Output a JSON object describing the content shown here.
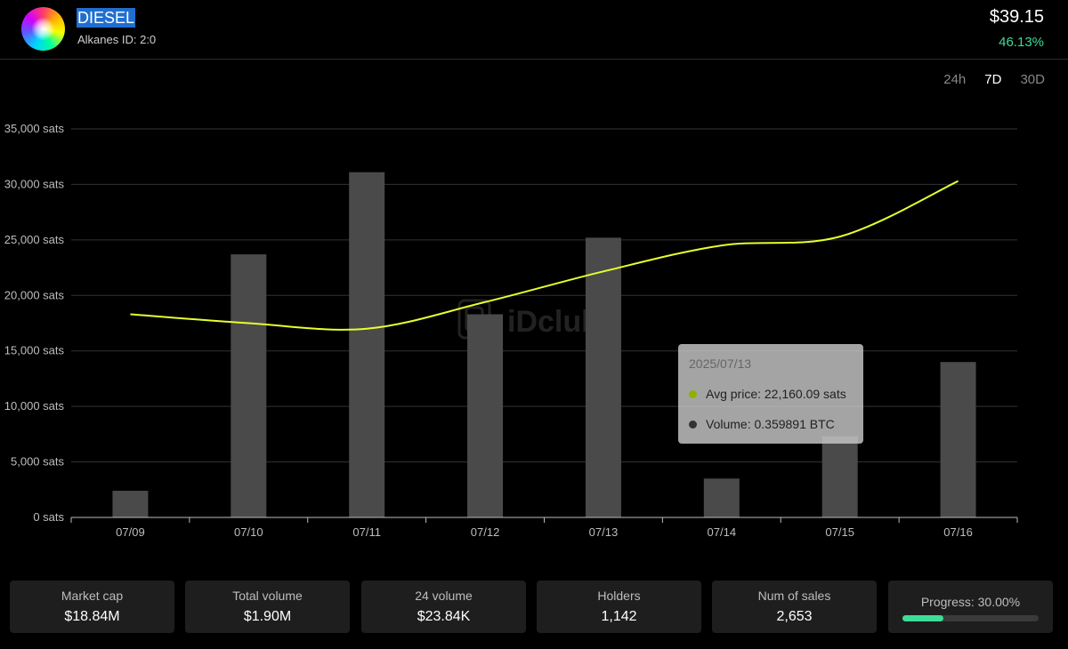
{
  "token": {
    "name": "DIESEL",
    "id_text": "Alkanes ID: 2:0",
    "price": "$39.15",
    "change": "46.13%"
  },
  "timeframes": [
    {
      "label": "24h",
      "active": false
    },
    {
      "label": "7D",
      "active": true
    },
    {
      "label": "30D",
      "active": false
    }
  ],
  "colors": {
    "accent_green": "#3ddc97",
    "line": "#e6ff2e",
    "bar": "#4a4a4a",
    "tooltip_volume_dot": "#333333",
    "tooltip_price_dot": "#8fb000"
  },
  "watermark": "iDclub",
  "chart_data": {
    "type": "bar",
    "categories": [
      "07/09",
      "07/10",
      "07/11",
      "07/12",
      "07/13",
      "07/14",
      "07/15",
      "07/16"
    ],
    "ylim": [
      0,
      35000
    ],
    "yticks": [
      {
        "value": 0,
        "label": "0 sats"
      },
      {
        "value": 5000,
        "label": "5,000 sats"
      },
      {
        "value": 10000,
        "label": "10,000 sats"
      },
      {
        "value": 15000,
        "label": "15,000 sats"
      },
      {
        "value": 20000,
        "label": "20,000 sats"
      },
      {
        "value": 25000,
        "label": "25,000 sats"
      },
      {
        "value": 30000,
        "label": "30,000 sats"
      },
      {
        "value": 35000,
        "label": "35,000 sats"
      }
    ],
    "grid": true,
    "series": [
      {
        "type": "bar",
        "values": [
          2400,
          23700,
          31100,
          18300,
          25200,
          3500,
          7300,
          14000
        ]
      },
      {
        "type": "line",
        "values": [
          18300,
          17500,
          17000,
          19400,
          22160,
          24500,
          25300,
          30300
        ]
      }
    ]
  },
  "tooltip": {
    "date": "2025/07/13",
    "avg_price": "Avg price: 22,160.09 sats",
    "volume": "Volume: 0.359891 BTC"
  },
  "stats": [
    {
      "label": "Market cap",
      "value": "$18.84M"
    },
    {
      "label": "Total volume",
      "value": "$1.90M"
    },
    {
      "label": "24 volume",
      "value": "$23.84K"
    },
    {
      "label": "Holders",
      "value": "1,142"
    },
    {
      "label": "Num of sales",
      "value": "2,653"
    }
  ],
  "progress": {
    "label": "Progress: 30.00%",
    "fraction": 0.3
  }
}
